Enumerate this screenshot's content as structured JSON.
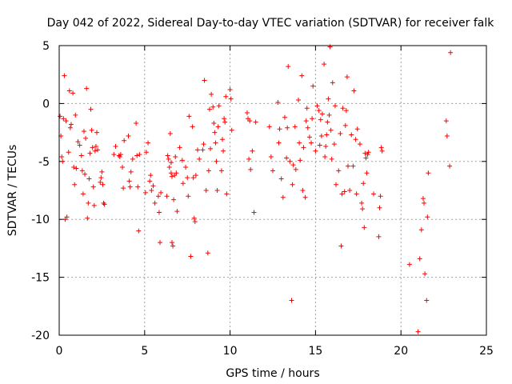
{
  "chart_data": {
    "type": "scatter",
    "title": "Day 042 of 2022, Sidereal Day-to-day VTEC variation (SDTVAR) for receiver falk",
    "xlabel": "GPS time / hours",
    "ylabel": "SDTVAR / TECUs",
    "xlim": [
      0,
      25
    ],
    "ylim": [
      -20,
      5
    ],
    "xticks": [
      0,
      5,
      10,
      15,
      20,
      25
    ],
    "yticks": [
      -20,
      -15,
      -10,
      -5,
      0,
      5
    ],
    "xtick_labels": [
      "0",
      "5",
      "10",
      "15",
      "20",
      "25"
    ],
    "ytick_labels": [
      "-20",
      "-15",
      "-10",
      "-5",
      "0",
      "5"
    ],
    "grid": true,
    "marker": "+",
    "color": "#ff0000",
    "series": [
      {
        "name": "SDTVAR",
        "points": [
          [
            0.05,
            -1.1
          ],
          [
            0.1,
            -2.8
          ],
          [
            0.15,
            -4.6
          ],
          [
            0.2,
            -5.0
          ],
          [
            0.25,
            -1.3
          ],
          [
            0.3,
            2.4
          ],
          [
            0.35,
            -10.0
          ],
          [
            0.4,
            -1.5
          ],
          [
            0.45,
            -9.8
          ],
          [
            0.55,
            -4.2
          ],
          [
            0.6,
            1.1
          ],
          [
            0.65,
            -2.1
          ],
          [
            0.7,
            -1.8
          ],
          [
            0.8,
            0.9
          ],
          [
            0.85,
            -5.5
          ],
          [
            0.9,
            -7.0
          ],
          [
            0.95,
            -1.0
          ],
          [
            1.0,
            -5.6
          ],
          [
            1.1,
            -3.3
          ],
          [
            1.2,
            -3.6
          ],
          [
            1.3,
            -4.5
          ],
          [
            1.35,
            -5.8
          ],
          [
            1.4,
            -7.8
          ],
          [
            1.45,
            -2.4
          ],
          [
            1.5,
            -6.1
          ],
          [
            1.55,
            -3.0
          ],
          [
            1.6,
            1.3
          ],
          [
            1.65,
            -9.9
          ],
          [
            1.7,
            -8.6
          ],
          [
            1.75,
            -6.5
          ],
          [
            1.8,
            -4.3
          ],
          [
            1.85,
            -0.5
          ],
          [
            1.9,
            -2.3
          ],
          [
            1.95,
            -3.8
          ],
          [
            2.0,
            -7.2
          ],
          [
            2.05,
            -8.8
          ],
          [
            2.1,
            -4.1
          ],
          [
            2.15,
            -3.7
          ],
          [
            2.2,
            -2.5
          ],
          [
            2.25,
            -4.0
          ],
          [
            2.4,
            -6.8
          ],
          [
            2.45,
            -6.4
          ],
          [
            2.5,
            -5.9
          ],
          [
            2.55,
            -7.0
          ],
          [
            2.6,
            -8.6
          ],
          [
            2.65,
            -8.7
          ],
          [
            3.2,
            -4.4
          ],
          [
            3.3,
            -3.7
          ],
          [
            3.5,
            -4.5
          ],
          [
            3.55,
            -4.6
          ],
          [
            3.6,
            -4.4
          ],
          [
            3.7,
            -5.5
          ],
          [
            3.75,
            -7.3
          ],
          [
            3.8,
            -3.2
          ],
          [
            4.05,
            -2.8
          ],
          [
            4.1,
            -6.7
          ],
          [
            4.15,
            -7.2
          ],
          [
            4.2,
            -5.9
          ],
          [
            4.3,
            -4.8
          ],
          [
            4.5,
            -1.7
          ],
          [
            4.55,
            -4.5
          ],
          [
            4.6,
            -7.2
          ],
          [
            4.65,
            -11.0
          ],
          [
            4.7,
            -4.4
          ],
          [
            5.05,
            -7.7
          ],
          [
            5.1,
            -4.2
          ],
          [
            5.2,
            -3.4
          ],
          [
            5.3,
            -6.7
          ],
          [
            5.35,
            -6.2
          ],
          [
            5.4,
            -7.5
          ],
          [
            5.5,
            -7.1
          ],
          [
            5.6,
            -8.6
          ],
          [
            5.8,
            -8.0
          ],
          [
            5.85,
            -9.4
          ],
          [
            5.9,
            -12.0
          ],
          [
            5.95,
            -7.7
          ],
          [
            6.3,
            -8.0
          ],
          [
            6.35,
            -4.5
          ],
          [
            6.4,
            -4.8
          ],
          [
            6.45,
            -5.5
          ],
          [
            6.5,
            -2.6
          ],
          [
            6.55,
            -5.1
          ],
          [
            6.55,
            -6.0
          ],
          [
            6.6,
            -6.3
          ],
          [
            6.6,
            -12.0
          ],
          [
            6.65,
            -12.3
          ],
          [
            6.7,
            -8.3
          ],
          [
            6.75,
            -6.2
          ],
          [
            6.8,
            -4.6
          ],
          [
            6.85,
            -6.0
          ],
          [
            6.9,
            -9.3
          ],
          [
            7.05,
            -3.8
          ],
          [
            7.2,
            -4.9
          ],
          [
            7.25,
            -6.9
          ],
          [
            7.4,
            -5.5
          ],
          [
            7.5,
            -6.4
          ],
          [
            7.55,
            -8.0
          ],
          [
            7.6,
            -1.1
          ],
          [
            7.7,
            -13.2
          ],
          [
            7.8,
            -2.0
          ],
          [
            7.85,
            -6.4
          ],
          [
            7.9,
            -9.9
          ],
          [
            7.95,
            -10.2
          ],
          [
            8.0,
            -6.2
          ],
          [
            8.1,
            -4.0
          ],
          [
            8.2,
            -4.8
          ],
          [
            8.4,
            -4.0
          ],
          [
            8.45,
            -3.5
          ],
          [
            8.5,
            2.0
          ],
          [
            8.6,
            -7.5
          ],
          [
            8.7,
            -12.9
          ],
          [
            8.75,
            -5.8
          ],
          [
            8.8,
            -0.5
          ],
          [
            8.85,
            -3.9
          ],
          [
            8.9,
            0.8
          ],
          [
            9.0,
            -0.3
          ],
          [
            9.05,
            -1.7
          ],
          [
            9.1,
            -2.5
          ],
          [
            9.15,
            -3.4
          ],
          [
            9.2,
            -5.0
          ],
          [
            9.25,
            -7.5
          ],
          [
            9.3,
            -2.0
          ],
          [
            9.35,
            -0.2
          ],
          [
            9.5,
            -5.8
          ],
          [
            9.55,
            -3.1
          ],
          [
            9.6,
            -4.1
          ],
          [
            9.65,
            -1.3
          ],
          [
            9.7,
            -1.6
          ],
          [
            9.75,
            0.6
          ],
          [
            9.8,
            -7.8
          ],
          [
            10.0,
            1.2
          ],
          [
            10.05,
            0.4
          ],
          [
            10.1,
            -2.3
          ],
          [
            11.0,
            -0.8
          ],
          [
            11.05,
            -1.3
          ],
          [
            11.1,
            -4.8
          ],
          [
            11.15,
            -1.5
          ],
          [
            11.2,
            -5.7
          ],
          [
            11.3,
            -4.1
          ],
          [
            11.4,
            -9.4
          ],
          [
            11.5,
            -1.6
          ],
          [
            12.3,
            -2.0
          ],
          [
            12.4,
            -4.6
          ],
          [
            12.5,
            -5.8
          ],
          [
            12.8,
            0.1
          ],
          [
            12.85,
            -3.4
          ],
          [
            12.9,
            -2.2
          ],
          [
            13.0,
            -6.5
          ],
          [
            13.1,
            -8.1
          ],
          [
            13.2,
            -1.2
          ],
          [
            13.3,
            -4.7
          ],
          [
            13.35,
            -2.1
          ],
          [
            13.4,
            3.2
          ],
          [
            13.5,
            -5.0
          ],
          [
            13.6,
            -17.0
          ],
          [
            13.65,
            -7.0
          ],
          [
            13.7,
            -5.3
          ],
          [
            13.8,
            -2.0
          ],
          [
            13.85,
            -5.7
          ],
          [
            14.0,
            0.3
          ],
          [
            14.05,
            -3.4
          ],
          [
            14.1,
            -4.9
          ],
          [
            14.2,
            2.4
          ],
          [
            14.25,
            -7.5
          ],
          [
            14.3,
            -3.8
          ],
          [
            14.4,
            -8.1
          ],
          [
            14.45,
            -1.5
          ],
          [
            14.5,
            -0.4
          ],
          [
            14.55,
            -2.1
          ],
          [
            14.65,
            -2.9
          ],
          [
            14.75,
            -3.4
          ],
          [
            14.8,
            -1.3
          ],
          [
            14.85,
            1.5
          ],
          [
            15.0,
            -4.1
          ],
          [
            15.1,
            -0.2
          ],
          [
            15.2,
            -0.6
          ],
          [
            15.25,
            -3.6
          ],
          [
            15.3,
            -1.4
          ],
          [
            15.35,
            -2.8
          ],
          [
            15.4,
            -0.9
          ],
          [
            15.5,
            3.4
          ],
          [
            15.55,
            -4.6
          ],
          [
            15.6,
            -3.7
          ],
          [
            15.65,
            -2.7
          ],
          [
            15.7,
            -1.6
          ],
          [
            15.75,
            0.4
          ],
          [
            15.8,
            -1.0
          ],
          [
            15.85,
            4.9
          ],
          [
            15.9,
            -2.3
          ],
          [
            15.95,
            -4.8
          ],
          [
            16.0,
            1.8
          ],
          [
            16.1,
            -3.5
          ],
          [
            16.15,
            -0.2
          ],
          [
            16.2,
            -7.0
          ],
          [
            16.35,
            -5.8
          ],
          [
            16.45,
            -2.6
          ],
          [
            16.5,
            -12.3
          ],
          [
            16.55,
            -7.8
          ],
          [
            16.6,
            -0.4
          ],
          [
            16.7,
            -7.6
          ],
          [
            16.75,
            -1.9
          ],
          [
            16.8,
            -0.6
          ],
          [
            16.85,
            2.3
          ],
          [
            16.9,
            -5.4
          ],
          [
            17.0,
            -7.5
          ],
          [
            17.1,
            -2.7
          ],
          [
            17.2,
            -5.4
          ],
          [
            17.25,
            1.1
          ],
          [
            17.35,
            -3.1
          ],
          [
            17.4,
            -7.8
          ],
          [
            17.45,
            -2.2
          ],
          [
            17.6,
            -3.5
          ],
          [
            17.7,
            -8.6
          ],
          [
            17.75,
            -9.1
          ],
          [
            17.8,
            -6.9
          ],
          [
            17.85,
            -10.7
          ],
          [
            17.9,
            -4.3
          ],
          [
            17.95,
            -4.7
          ],
          [
            18.0,
            -6.0
          ],
          [
            18.05,
            -4.4
          ],
          [
            18.1,
            -4.2
          ],
          [
            18.4,
            -7.8
          ],
          [
            18.7,
            -11.5
          ],
          [
            18.75,
            -9.0
          ],
          [
            18.8,
            -8.0
          ],
          [
            18.85,
            -3.8
          ],
          [
            18.9,
            -4.1
          ],
          [
            20.5,
            -13.9
          ],
          [
            21.0,
            -19.7
          ],
          [
            21.1,
            -13.4
          ],
          [
            21.2,
            -10.9
          ],
          [
            21.3,
            -8.2
          ],
          [
            21.35,
            -8.6
          ],
          [
            21.4,
            -14.7
          ],
          [
            21.5,
            -17.0
          ],
          [
            21.55,
            -9.8
          ],
          [
            21.6,
            -6.0
          ],
          [
            22.65,
            -1.5
          ],
          [
            22.7,
            -2.8
          ],
          [
            22.85,
            -5.4
          ],
          [
            22.9,
            4.4
          ]
        ]
      }
    ]
  }
}
